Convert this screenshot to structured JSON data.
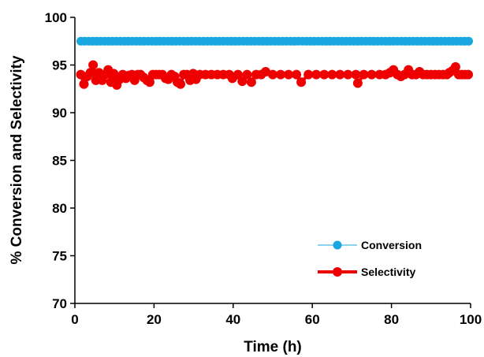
{
  "chart_data": {
    "type": "scatter",
    "title": "",
    "xlabel": "Time (h)",
    "ylabel": "% Conversion and Selectivity",
    "xlim": [
      0,
      100
    ],
    "ylim": [
      70,
      100
    ],
    "x_ticks": [
      0,
      20,
      40,
      60,
      80,
      100
    ],
    "y_ticks": [
      70,
      75,
      80,
      85,
      90,
      95,
      100
    ],
    "grid": false,
    "legend_position": "bottom-right",
    "series": [
      {
        "name": "Conversion",
        "color": "#1aa7e0",
        "style": "markers with thin line",
        "x": [
          1.5,
          2.5,
          3.5,
          4.5,
          5.5,
          6.5,
          7.5,
          8.5,
          9.5,
          10.5,
          11.5,
          12.5,
          13.5,
          14.5,
          15.5,
          16.5,
          17.5,
          18.5,
          19.5,
          20.5,
          21.5,
          22.5,
          23.5,
          24.5,
          25.5,
          26.5,
          27.5,
          28.5,
          29.5,
          30.5,
          31.5,
          32.5,
          33.5,
          34.5,
          35.5,
          36.5,
          37.5,
          38.5,
          39.5,
          40.5,
          41.5,
          42.5,
          43.5,
          44.5,
          45.5,
          46.5,
          47.5,
          48.5,
          49.5,
          50.5,
          51.5,
          52.5,
          53.5,
          54.5,
          55.5,
          56.5,
          57.5,
          58.5,
          59.5,
          60.5,
          61.5,
          62.5,
          63.5,
          64.5,
          65.5,
          66.5,
          67.5,
          68.5,
          69.5,
          70.5,
          71.5,
          72.5,
          73.5,
          74.5,
          75.5,
          76.5,
          77.5,
          78.5,
          79.5,
          80.5,
          81.5,
          82.5,
          83.5,
          84.5,
          85.5,
          86.5,
          87.5,
          88.5,
          89.5,
          90.5,
          91.5,
          92.5,
          93.5,
          94.5,
          95.5,
          96.5,
          97.5,
          98.5,
          99.5
        ],
        "y": [
          97.5,
          97.5,
          97.5,
          97.5,
          97.5,
          97.5,
          97.5,
          97.5,
          97.5,
          97.5,
          97.5,
          97.5,
          97.5,
          97.5,
          97.5,
          97.5,
          97.5,
          97.5,
          97.5,
          97.5,
          97.5,
          97.5,
          97.5,
          97.5,
          97.5,
          97.5,
          97.5,
          97.5,
          97.5,
          97.5,
          97.5,
          97.5,
          97.5,
          97.5,
          97.5,
          97.5,
          97.5,
          97.5,
          97.5,
          97.5,
          97.5,
          97.5,
          97.5,
          97.5,
          97.5,
          97.5,
          97.5,
          97.5,
          97.5,
          97.5,
          97.5,
          97.5,
          97.5,
          97.5,
          97.5,
          97.5,
          97.5,
          97.5,
          97.5,
          97.5,
          97.5,
          97.5,
          97.5,
          97.5,
          97.5,
          97.5,
          97.5,
          97.5,
          97.5,
          97.5,
          97.5,
          97.5,
          97.5,
          97.5,
          97.5,
          97.5,
          97.5,
          97.5,
          97.5,
          97.5,
          97.5,
          97.5,
          97.5,
          97.5,
          97.5,
          97.5,
          97.5,
          97.5,
          97.5,
          97.5,
          97.5,
          97.5,
          97.5,
          97.5,
          97.5,
          97.5,
          97.5,
          97.5,
          97.5
        ]
      },
      {
        "name": "Selectivity",
        "color": "#ee0000",
        "style": "markers with thick line",
        "x": [
          1.5,
          2.3,
          3.1,
          3.9,
          4.6,
          5.3,
          6.1,
          6.9,
          7.6,
          8.4,
          9.1,
          9.8,
          10.6,
          11.3,
          12.1,
          12.9,
          13.6,
          14.4,
          15.1,
          15.9,
          16.6,
          17.4,
          18.2,
          18.9,
          19.7,
          20.5,
          21.3,
          22.1,
          22.9,
          23.6,
          24.4,
          25.2,
          25.9,
          26.7,
          27.5,
          28.3,
          29.1,
          29.9,
          30.6,
          31.6,
          33,
          34.5,
          36,
          37.5,
          39,
          39.8,
          41.2,
          42.3,
          43.5,
          44.6,
          45.8,
          47.1,
          48.2,
          50,
          52,
          54,
          56,
          57.2,
          59,
          61,
          63,
          65,
          67,
          69,
          71,
          71.5,
          73,
          75,
          77,
          78.5,
          79.6,
          80.5,
          81.5,
          82.4,
          83.3,
          84.3,
          85.2,
          86.2,
          87.1,
          88,
          89,
          90,
          91,
          92,
          93,
          94,
          94.6,
          95.4,
          96.2,
          97,
          97.8,
          98.6,
          99.4
        ],
        "y": [
          94.0,
          93.0,
          93.8,
          94.2,
          95.0,
          93.4,
          94.2,
          93.4,
          94.0,
          94.5,
          93.2,
          94.1,
          92.9,
          93.5,
          94.0,
          93.6,
          93.9,
          94.0,
          93.4,
          94.0,
          94.0,
          93.7,
          93.4,
          93.2,
          94.0,
          94.0,
          94.0,
          94.0,
          93.6,
          93.5,
          94.0,
          93.8,
          93.2,
          93.0,
          94.0,
          94.0,
          93.4,
          94.1,
          93.5,
          94.0,
          94.0,
          94.0,
          94.0,
          94.0,
          94.0,
          93.6,
          94.0,
          93.3,
          94.0,
          93.2,
          94.0,
          94.0,
          94.3,
          94.0,
          94.0,
          94.0,
          94.0,
          93.2,
          94.0,
          94.0,
          94.0,
          94.0,
          94.0,
          94.0,
          94.0,
          93.1,
          94.0,
          94.0,
          94.0,
          94.0,
          94.2,
          94.5,
          94.0,
          93.8,
          94.0,
          94.5,
          94.0,
          94.0,
          94.3,
          94.0,
          94.0,
          94.0,
          94.0,
          94.0,
          94.0,
          94.0,
          94.2,
          94.4,
          94.8,
          94.0,
          94.0,
          94.0,
          94.0
        ]
      }
    ]
  }
}
